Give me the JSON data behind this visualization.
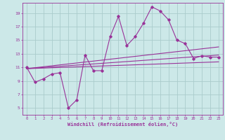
{
  "bg_color": "#cce8e8",
  "grid_color": "#aacccc",
  "line_color": "#993399",
  "marker_color": "#993399",
  "xlabel": "Windchill (Refroidissement éolien,°C)",
  "tick_color": "#993399",
  "xlim": [
    -0.5,
    23.5
  ],
  "ylim": [
    4,
    20.5
  ],
  "yticks": [
    5,
    7,
    9,
    11,
    13,
    15,
    17,
    19
  ],
  "xticks": [
    0,
    1,
    2,
    3,
    4,
    5,
    6,
    7,
    8,
    9,
    10,
    11,
    12,
    13,
    14,
    15,
    16,
    17,
    18,
    19,
    20,
    21,
    22,
    23
  ],
  "main_line_x": [
    0,
    1,
    2,
    3,
    4,
    5,
    6,
    7,
    8,
    9,
    10,
    11,
    12,
    13,
    14,
    15,
    16,
    17,
    18,
    19,
    20,
    21,
    22,
    23
  ],
  "main_line_y": [
    11,
    8.8,
    9.3,
    10.0,
    10.2,
    5.0,
    6.2,
    12.8,
    10.5,
    10.5,
    15.5,
    18.5,
    14.2,
    15.5,
    17.5,
    19.9,
    19.3,
    18.0,
    15.0,
    14.5,
    12.3,
    12.7,
    12.5,
    12.5
  ],
  "line2_x": [
    0,
    23
  ],
  "line2_y": [
    10.8,
    14.0
  ],
  "line3_x": [
    0,
    23
  ],
  "line3_y": [
    10.8,
    12.8
  ],
  "line4_x": [
    0,
    23
  ],
  "line4_y": [
    10.8,
    11.8
  ]
}
